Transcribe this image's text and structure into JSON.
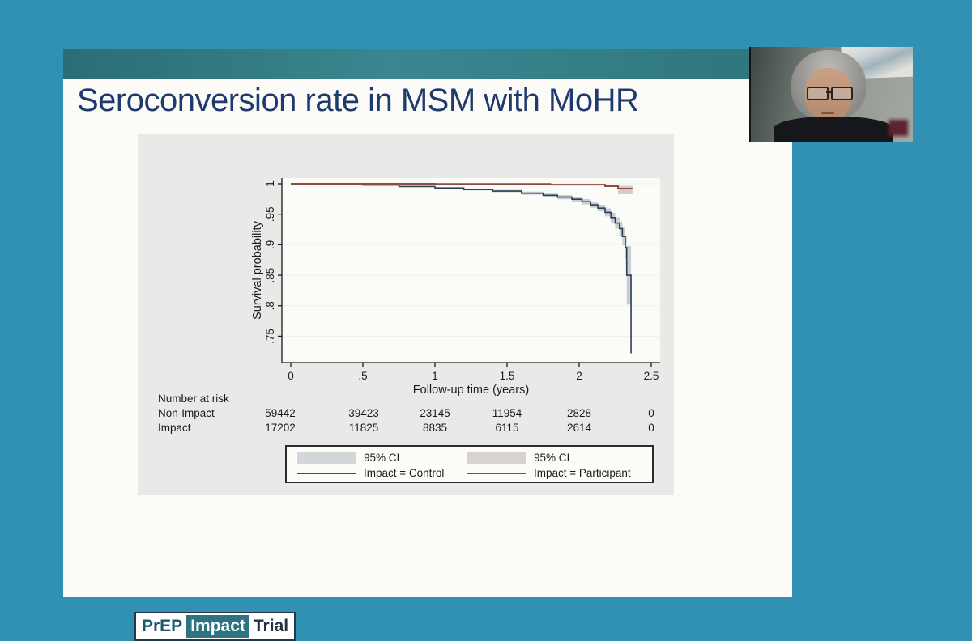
{
  "page": {
    "background_color": "#3191b5"
  },
  "slide": {
    "title": "Seroconversion rate in MSM with MoHR",
    "title_color": "#1f3a6d",
    "topbar_color": "#2e757d"
  },
  "chart_data": {
    "type": "line",
    "title": "",
    "xlabel": "Follow-up time (years)",
    "ylabel": "Survival probability",
    "xlim": [
      -0.062,
      2.562
    ],
    "ylim": [
      0.7068,
      1.0093
    ],
    "xticks": [
      0,
      0.5,
      1,
      1.5,
      2,
      2.5
    ],
    "xtick_labels": [
      "0",
      ".5",
      "1",
      "1.5",
      "2",
      "2.5"
    ],
    "yticks": [
      1,
      0.95,
      0.9,
      0.85,
      0.8,
      0.75
    ],
    "ytick_labels": [
      "1",
      ".95",
      ".9",
      ".85",
      ".8",
      ".75"
    ],
    "grid": true,
    "grid_color": "#f0f1ec",
    "plot_bg": "#fbfcf8",
    "panel_bg": "#e9eae7",
    "axis_color": "#1a1a1a",
    "legend_position": "bottom",
    "series": [
      {
        "name": "Impact = Control",
        "line_color": "#2f3e58",
        "ci_color": "#c9ced3",
        "ci_label": "95% CI",
        "points_format": [
          "time_years",
          "survival",
          "ci_lower",
          "ci_upper"
        ],
        "points": [
          [
            0,
            1,
            1,
            1
          ],
          [
            0.25,
            0.999,
            0.9985,
            0.9995
          ],
          [
            0.5,
            0.998,
            0.9972,
            0.9988
          ],
          [
            0.75,
            0.9955,
            0.9945,
            0.9965
          ],
          [
            1.0,
            0.993,
            0.9915,
            0.9945
          ],
          [
            1.2,
            0.9905,
            0.989,
            0.992
          ],
          [
            1.4,
            0.988,
            0.986,
            0.99
          ],
          [
            1.6,
            0.9845,
            0.982,
            0.987
          ],
          [
            1.75,
            0.981,
            0.978,
            0.984
          ],
          [
            1.85,
            0.978,
            0.9745,
            0.9815
          ],
          [
            1.95,
            0.9745,
            0.9705,
            0.9785
          ],
          [
            2.02,
            0.9705,
            0.966,
            0.975
          ],
          [
            2.08,
            0.9655,
            0.9605,
            0.9705
          ],
          [
            2.13,
            0.96,
            0.9545,
            0.9655
          ],
          [
            2.18,
            0.953,
            0.9465,
            0.9595
          ],
          [
            2.22,
            0.9445,
            0.9365,
            0.9525
          ],
          [
            2.25,
            0.9355,
            0.926,
            0.945
          ],
          [
            2.28,
            0.9265,
            0.915,
            0.938
          ],
          [
            2.3,
            0.9135,
            0.899,
            0.928
          ],
          [
            2.32,
            0.8955,
            0.877,
            0.914
          ],
          [
            2.33,
            0.85,
            0.802,
            0.898
          ],
          [
            2.36,
            0.722,
            0.722,
            0.898
          ]
        ]
      },
      {
        "name": "Impact = Participant",
        "line_color": "#8d4a43",
        "ci_color": "#d2cbc7",
        "ci_label": "95% CI",
        "points_format": [
          "time_years",
          "survival",
          "ci_lower",
          "ci_upper"
        ],
        "points": [
          [
            0,
            1,
            1,
            1
          ],
          [
            1.0,
            0.9997,
            0.9993,
            1
          ],
          [
            1.8,
            0.9985,
            0.9978,
            0.9992
          ],
          [
            2.18,
            0.996,
            0.995,
            0.997
          ],
          [
            2.27,
            0.992,
            0.983,
            0.9965
          ],
          [
            2.37,
            0.992,
            0.983,
            0.9965
          ]
        ]
      }
    ]
  },
  "risk_table": {
    "header": "Number at risk",
    "time_points": [
      0,
      0.5,
      1,
      1.5,
      2,
      2.5
    ],
    "rows": [
      {
        "label": "Non-Impact",
        "values": [
          "59442",
          "39423",
          "23145",
          "11954",
          "2828",
          "0"
        ]
      },
      {
        "label": "Impact",
        "values": [
          "17202",
          "11825",
          "8835",
          "6115",
          "2614",
          "0"
        ]
      }
    ]
  },
  "legend": {
    "items": [
      {
        "type": "box",
        "color": "#d3d7da",
        "label": "95% CI"
      },
      {
        "type": "box",
        "color": "#d9d3d0",
        "label": "95% CI"
      },
      {
        "type": "line",
        "color": "#3e4c64",
        "label": "Impact = Control"
      },
      {
        "type": "line",
        "color": "#8d4a43",
        "label": "Impact = Participant"
      }
    ]
  },
  "webcam": {
    "description": "presenter video thumbnail"
  },
  "logo": {
    "border_color": "#24384a",
    "segments": [
      {
        "text": "PrEP",
        "fg": "#1c566b",
        "bg": "#ffffff"
      },
      {
        "text": "Impact",
        "fg": "#ffffff",
        "bg": "#2d7380"
      },
      {
        "text": "Trial",
        "fg": "#223240",
        "bg": "#ffffff"
      }
    ]
  }
}
